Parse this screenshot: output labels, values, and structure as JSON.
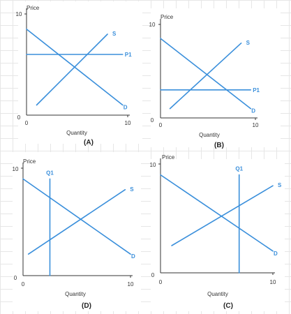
{
  "chart_data": [
    {
      "panel": "(A)",
      "type": "line",
      "ylabel": "Price",
      "xlabel": "Quantity",
      "xlim": [
        0,
        10
      ],
      "ylim": [
        0,
        10
      ],
      "x_ticks": [
        "0",
        "10"
      ],
      "y_ticks": [
        "0",
        "10"
      ],
      "series": [
        {
          "name": "S",
          "points": [
            [
              1,
              1
            ],
            [
              8,
              8
            ]
          ]
        },
        {
          "name": "D",
          "points": [
            [
              0,
              8.5
            ],
            [
              9.5,
              1
            ]
          ]
        },
        {
          "name": "P1",
          "points": [
            [
              0,
              6
            ],
            [
              9.5,
              6
            ]
          ]
        }
      ]
    },
    {
      "panel": "(B)",
      "type": "line",
      "ylabel": "Price",
      "xlabel": "Quantity",
      "xlim": [
        0,
        10
      ],
      "ylim": [
        0,
        10
      ],
      "x_ticks": [
        "0",
        "10"
      ],
      "y_ticks": [
        "0",
        "10"
      ],
      "series": [
        {
          "name": "S",
          "points": [
            [
              1,
              1
            ],
            [
              8.5,
              8
            ]
          ]
        },
        {
          "name": "D",
          "points": [
            [
              0,
              8.5
            ],
            [
              9.5,
              1
            ]
          ]
        },
        {
          "name": "P1",
          "points": [
            [
              0,
              3
            ],
            [
              9.5,
              3
            ]
          ]
        }
      ]
    },
    {
      "panel": "(D)",
      "type": "line",
      "ylabel": "Price",
      "xlabel": "Quantity",
      "xlim": [
        0,
        10
      ],
      "ylim": [
        0,
        10
      ],
      "x_ticks": [
        "0",
        "10"
      ],
      "y_ticks": [
        "0",
        "10"
      ],
      "series": [
        {
          "name": "S",
          "points": [
            [
              0.5,
              2
            ],
            [
              9.5,
              8
            ]
          ]
        },
        {
          "name": "D",
          "points": [
            [
              0,
              9
            ],
            [
              10,
              2
            ]
          ]
        },
        {
          "name": "Q1",
          "points": [
            [
              2.5,
              0
            ],
            [
              2.5,
              9
            ]
          ]
        }
      ]
    },
    {
      "panel": "(C)",
      "type": "line",
      "ylabel": "Price",
      "xlabel": "Quantity",
      "xlim": [
        0,
        10
      ],
      "ylim": [
        0,
        10
      ],
      "x_ticks": [
        "0",
        "10"
      ],
      "y_ticks": [
        "0",
        "10"
      ],
      "series": [
        {
          "name": "S",
          "points": [
            [
              1,
              2.5
            ],
            [
              10,
              8
            ]
          ]
        },
        {
          "name": "D",
          "points": [
            [
              0,
              9
            ],
            [
              10,
              2
            ]
          ]
        },
        {
          "name": "Q1",
          "points": [
            [
              7,
              0
            ],
            [
              7,
              9
            ]
          ]
        }
      ]
    }
  ],
  "colors": {
    "curves": "#3a8fdb",
    "axes": "#333333"
  }
}
